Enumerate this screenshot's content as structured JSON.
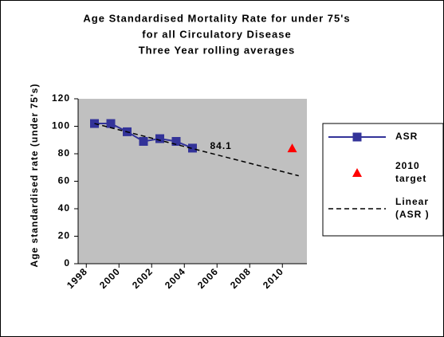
{
  "chart_data": {
    "type": "line",
    "title": [
      "Age Standardised Mortality Rate for under 75's",
      "for all Circulatory Disease",
      "Three Year rolling averages"
    ],
    "y_label": "Age standardised rate (under 75's)",
    "xlim": [
      1997.5,
      2011.5
    ],
    "xticks": [
      1998,
      2000,
      2002,
      2004,
      2006,
      2008,
      2010
    ],
    "ylim": [
      0,
      120
    ],
    "yticks": [
      0,
      20,
      40,
      60,
      80,
      100,
      120
    ],
    "plot_background": "#c0c0c0",
    "series": [
      {
        "name": "ASR",
        "color": "#333399",
        "marker": "square",
        "line": "solid",
        "x": [
          1998.5,
          1999.5,
          2000.5,
          2001.5,
          2002.5,
          2003.5,
          2004.5
        ],
        "values": [
          102,
          102,
          96,
          89,
          91,
          89,
          84.1
        ]
      },
      {
        "name": "2010 target",
        "color": "#ff0000",
        "marker": "triangle",
        "line": "none",
        "x": [
          2010.6
        ],
        "values": [
          84
        ]
      },
      {
        "name": "Linear (ASR )",
        "color": "#000000",
        "marker": "none",
        "line": "dashed",
        "x": [
          1998.5,
          2011
        ],
        "values": [
          102,
          64
        ]
      }
    ],
    "labelled_point": [
      0,
      6
    ]
  }
}
